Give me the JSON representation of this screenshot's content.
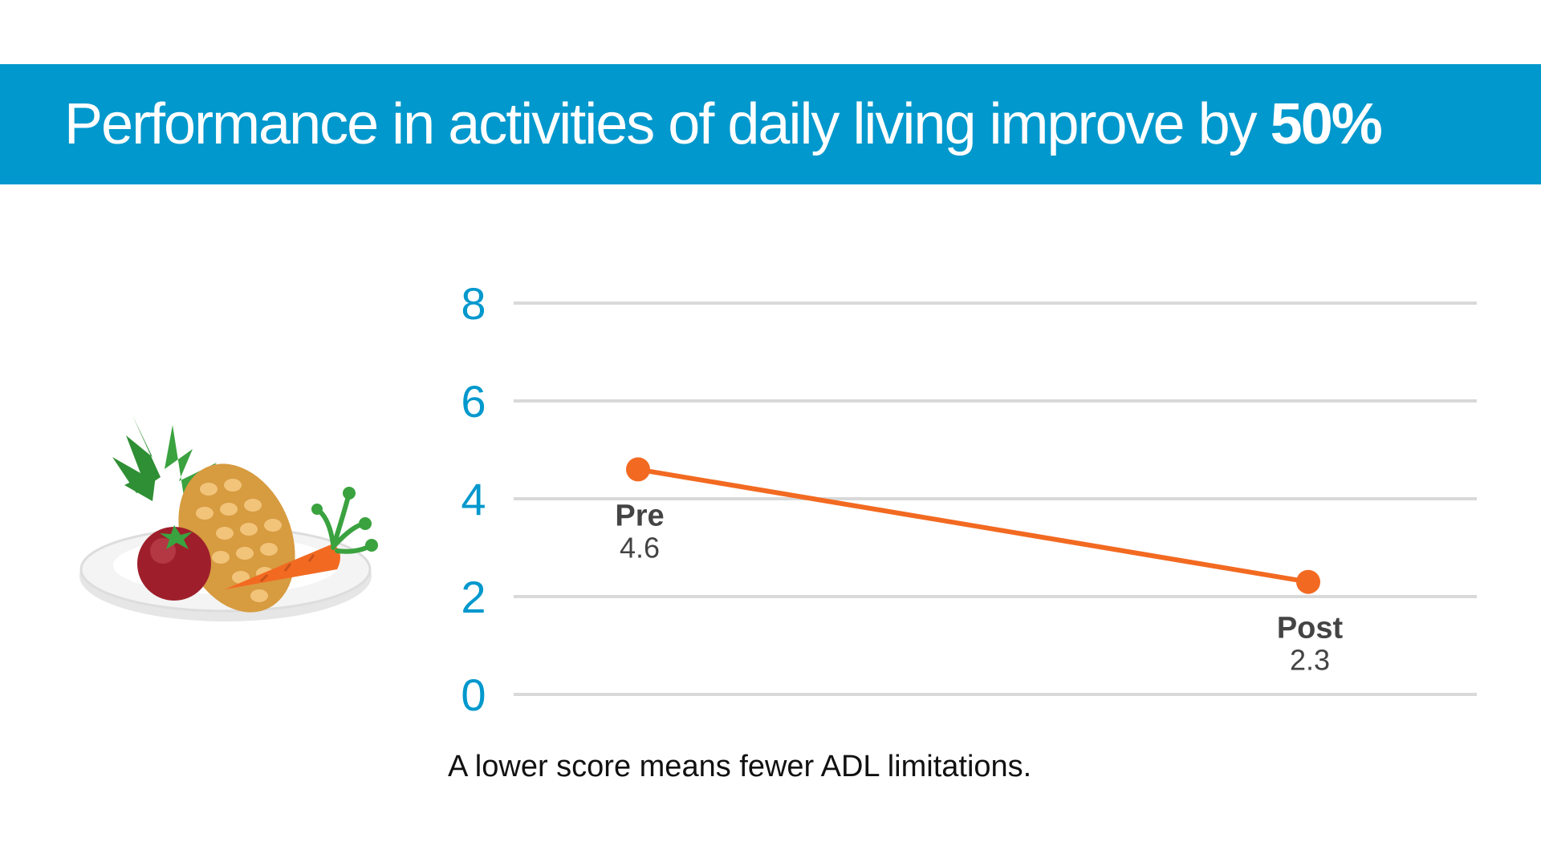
{
  "header": {
    "title_main": "Performance in activities of daily living improve by ",
    "title_emphasis": "50%"
  },
  "chart_data": {
    "type": "line",
    "categories": [
      "Pre",
      "Post"
    ],
    "values": [
      4.6,
      2.3
    ],
    "value_labels": [
      "4.6",
      "2.3"
    ],
    "ylim": [
      0,
      8
    ],
    "yticks": [
      0,
      2,
      4,
      6,
      8
    ],
    "grid": true
  },
  "footnote": "A lower score means fewer ADL limitations.",
  "colors": {
    "banner": "#0098cd",
    "line": "#f26a21",
    "grid": "#d9d9d9",
    "axis_text": "#0098cd"
  },
  "illustration": {
    "icons": [
      "plate-icon",
      "pineapple-icon",
      "tomato-icon",
      "carrot-icon"
    ]
  }
}
